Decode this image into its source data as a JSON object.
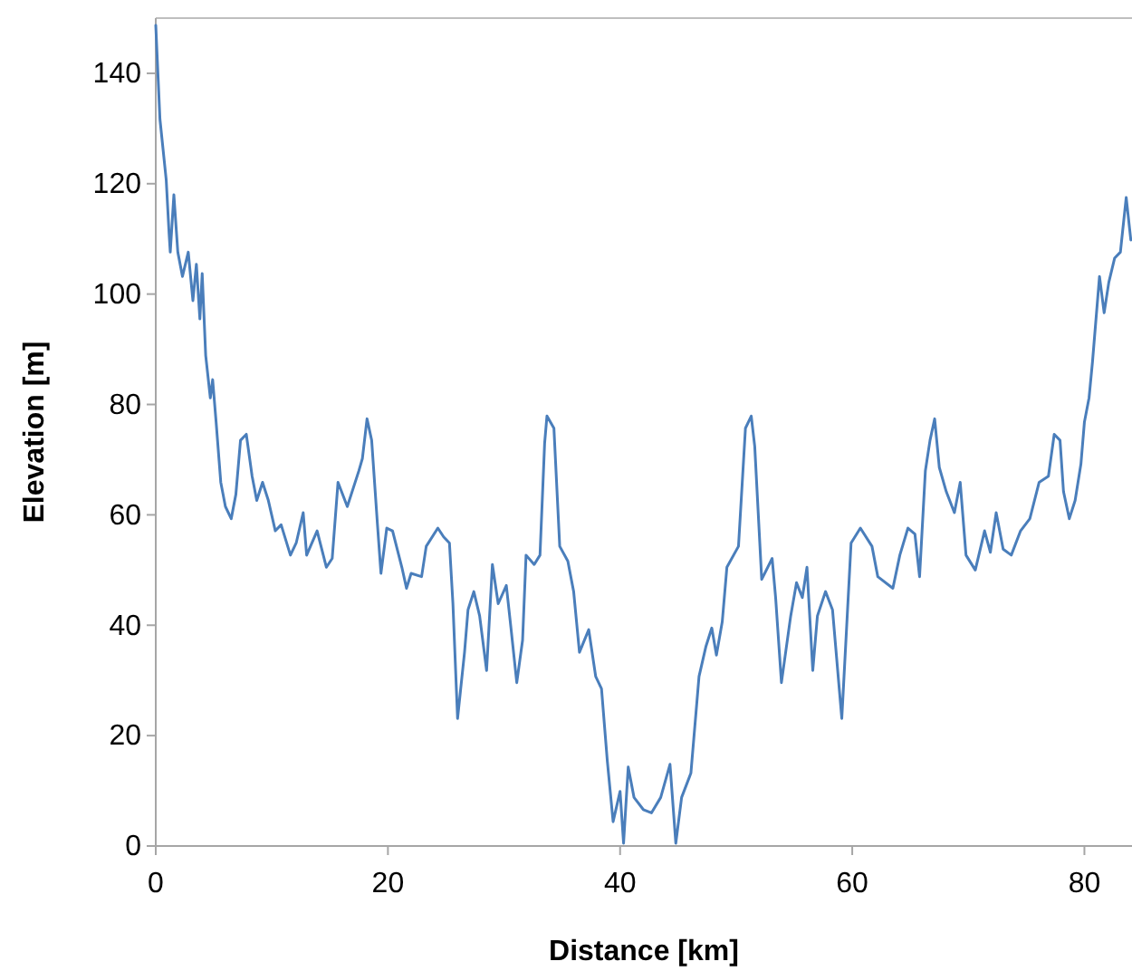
{
  "chart_data": {
    "type": "line",
    "xlabel": "Distance [km]",
    "ylabel": "Elevation [m]",
    "xlim": [
      0,
      84.1
    ],
    "xticks": [
      0,
      20,
      40,
      60,
      80
    ],
    "ylim": [
      0,
      150
    ],
    "yticks": [
      0,
      20,
      40,
      60,
      80,
      100,
      120,
      140
    ],
    "grid": false,
    "marker": "none",
    "line_style": "solid",
    "series": [
      {
        "color": "#4a7ebb",
        "x": [
          0,
          0.36,
          0.9,
          1.15,
          1.25,
          1.56,
          1.9,
          2.3,
          2.8,
          3.2,
          3.5,
          3.8,
          4.0,
          4.3,
          4.7,
          4.9,
          5.2,
          5.6,
          6.0,
          6.5,
          6.9,
          7.3,
          7.8,
          8.3,
          8.7,
          9.2,
          9.7,
          10.3,
          10.8,
          11.6,
          12.1,
          12.7,
          13.0,
          13.9,
          14.7,
          15.2,
          15.7,
          16.5,
          17.5,
          17.8,
          18.2,
          18.6,
          19.1,
          19.4,
          19.9,
          20.4,
          21.2,
          21.6,
          22.0,
          22.9,
          23.3,
          24.3,
          24.8,
          25.3,
          25.6,
          26.0,
          26.6,
          26.9,
          27.4,
          27.9,
          28.5,
          29.0,
          29.5,
          30.2,
          30.6,
          31.1,
          31.6,
          31.9,
          32.6,
          33.1,
          33.5,
          33.7,
          34.3,
          34.8,
          35.5,
          36.0,
          36.5,
          37.3,
          37.9,
          38.4,
          38.9,
          39.4,
          40.0,
          40.3,
          40.7,
          41.2,
          42.0,
          42.7,
          43.5,
          44.3,
          44.8,
          45.3,
          46.1,
          46.8,
          47.4,
          47.9,
          48.3,
          48.8,
          49.2,
          50.2,
          50.8,
          51.3,
          51.6,
          52.2,
          53.1,
          53.4,
          53.9,
          54.7,
          55.2,
          55.7,
          56.1,
          56.6,
          57.0,
          57.7,
          58.3,
          59.1,
          59.9,
          60.7,
          61.7,
          62.2,
          63.5,
          64.1,
          64.8,
          65.4,
          65.8,
          66.3,
          66.7,
          67.1,
          67.5,
          68.1,
          68.8,
          69.3,
          69.8,
          70.6,
          71.4,
          71.9,
          72.4,
          73.0,
          73.7,
          74.5,
          75.3,
          76.1,
          76.9,
          77.4,
          77.9,
          78.2,
          78.7,
          79.2,
          79.7,
          80.0,
          80.4,
          80.7,
          81.3,
          81.7,
          82.1,
          82.6,
          83.1,
          83.6,
          84.0
        ],
        "values": [
          148.7,
          131.7,
          120.7,
          110.9,
          107.6,
          118,
          107.6,
          103.2,
          107.6,
          98.8,
          105.4,
          95.5,
          103.7,
          88.9,
          81.2,
          84.5,
          76.8,
          65.9,
          61.5,
          59.3,
          63.7,
          73.5,
          74.6,
          67,
          62.6,
          65.9,
          62.6,
          57.1,
          58.2,
          52.7,
          54.9,
          60.4,
          52.7,
          57.1,
          50.5,
          52.1,
          65.9,
          61.5,
          68,
          70.2,
          77.4,
          73.5,
          58.2,
          49.4,
          57.6,
          57.1,
          50.5,
          46.7,
          49.4,
          48.8,
          54.3,
          57.6,
          56,
          54.9,
          43.9,
          23.1,
          35.1,
          42.8,
          46.1,
          41.7,
          31.8,
          51,
          43.9,
          47.2,
          39.5,
          29.6,
          37.3,
          52.7,
          51,
          52.7,
          73,
          77.9,
          75.7,
          54.3,
          51.6,
          46.1,
          35.1,
          39.2,
          30.7,
          28.5,
          15.4,
          4.4,
          9.9,
          0.5,
          14.3,
          8.8,
          6.6,
          6,
          8.8,
          14.8,
          0.5,
          8.8,
          13.2,
          30.7,
          36.2,
          39.5,
          34.6,
          40.6,
          50.5,
          54.3,
          75.7,
          77.9,
          72.4,
          48.3,
          52.1,
          45,
          29.6,
          41.7,
          47.7,
          45,
          50.5,
          31.8,
          41.7,
          46.1,
          42.8,
          23.1,
          54.9,
          57.6,
          54.3,
          48.8,
          46.7,
          52.7,
          57.6,
          56.5,
          48.8,
          68,
          73.5,
          77.4,
          68.6,
          64.2,
          60.4,
          65.9,
          52.7,
          50,
          57.1,
          53.2,
          60.4,
          53.8,
          52.7,
          57.1,
          59.3,
          65.9,
          67,
          74.6,
          73.5,
          64.2,
          59.3,
          62.6,
          69.2,
          76.8,
          81.2,
          87.8,
          103.2,
          96.6,
          102.1,
          106.5,
          107.6,
          117.5,
          109.8
        ]
      }
    ]
  }
}
